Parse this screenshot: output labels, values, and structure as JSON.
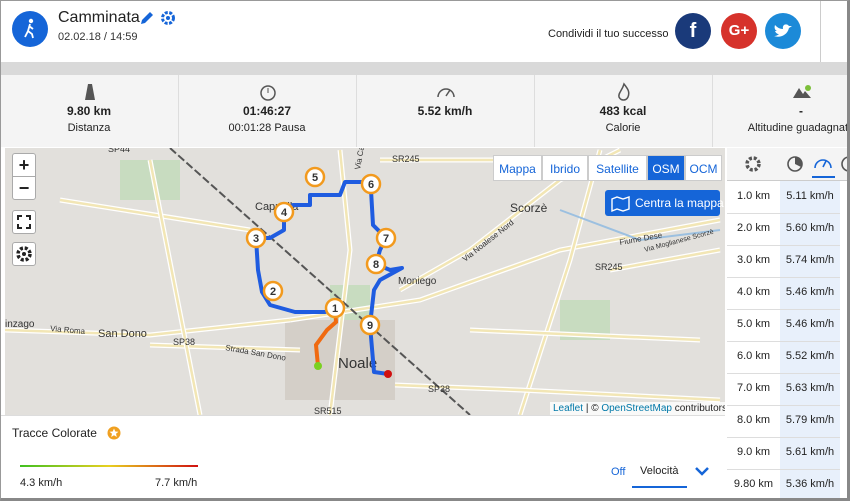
{
  "header": {
    "title": "Camminata",
    "date": "02.02.18 / 14:59",
    "share_text": "Condividi il tuo successo",
    "social": [
      "f",
      "G+"
    ]
  },
  "stats": [
    {
      "value": "9.80 km",
      "label": "Distanza"
    },
    {
      "value": "01:46:27",
      "label": "00:01:28 Pausa"
    },
    {
      "value": "5.52 km/h"
    },
    {
      "value": "483 kcal",
      "label": "Calorie"
    },
    {
      "value": "-",
      "label": "Altitudine guadagnata"
    }
  ],
  "map": {
    "layers": [
      "Mappa",
      "Ibrido",
      "Satellite",
      "OSM",
      "OCM"
    ],
    "active_layer": "OSM",
    "center_button": "Centra la mappa",
    "zoom_in": "+",
    "zoom_out": "−",
    "attribution": {
      "leaflet": "Leaflet",
      "separator": "| ©",
      "osm": "OpenStreetMap",
      "suffix": "contributors"
    },
    "labels": [
      "SP44",
      "SR245",
      "Via Castellana",
      "SR515",
      "Cappella",
      "Scorzè",
      "Via Moglianese Scorzè",
      "Fiume Dese",
      "SR245",
      "Moniego",
      "San Dono",
      "Strada San Dono",
      "SP38",
      "Noale",
      "SP38",
      "SR515",
      "Via Noalese Nord",
      "Via Roma",
      "inzago"
    ],
    "markers": [
      "1",
      "2",
      "3",
      "4",
      "5",
      "6",
      "7",
      "8",
      "9"
    ]
  },
  "splits": {
    "rows": [
      [
        "1.0 km",
        "5.11 km/h"
      ],
      [
        "2.0 km",
        "5.60 km/h"
      ],
      [
        "3.0 km",
        "5.74 km/h"
      ],
      [
        "4.0 km",
        "5.46 km/h"
      ],
      [
        "5.0 km",
        "5.46 km/h"
      ],
      [
        "6.0 km",
        "5.52 km/h"
      ],
      [
        "7.0 km",
        "5.63 km/h"
      ],
      [
        "8.0 km",
        "5.79 km/h"
      ],
      [
        "9.0 km",
        "5.61 km/h"
      ],
      [
        "9.80 km",
        "5.36 km/h"
      ]
    ]
  },
  "colored_tracks": {
    "title": "Tracce Colorate",
    "min": "4.3 km/h",
    "max": "7.7 km/h",
    "off": "Off",
    "mode": "Velocità"
  }
}
